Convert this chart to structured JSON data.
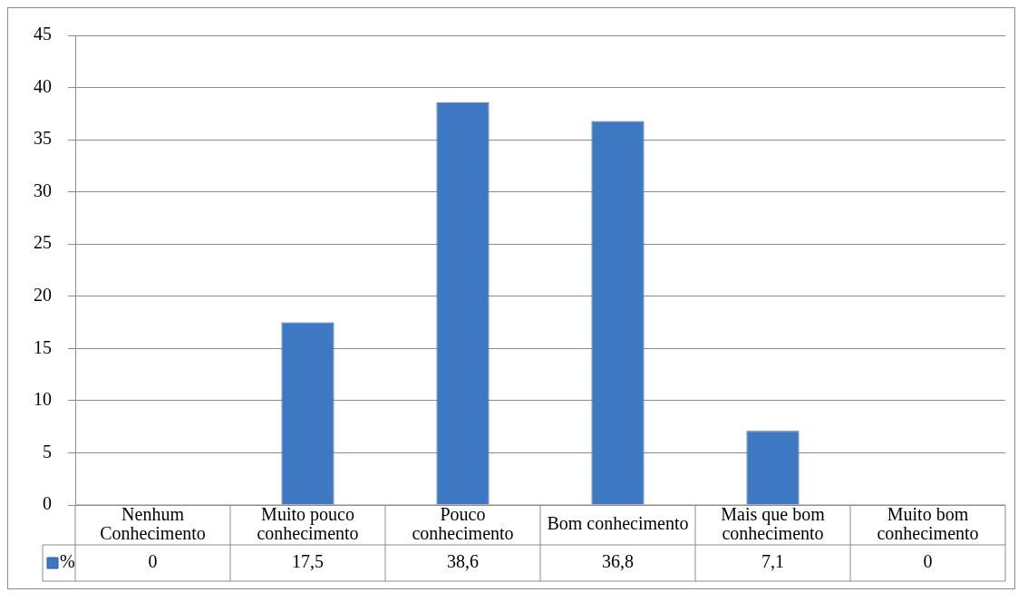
{
  "chart_data": {
    "type": "bar",
    "categories": [
      "Nenhum Conhecimento",
      "Muito pouco conhecimento",
      "Pouco conhecimento",
      "Bom conhecimento",
      "Mais que bom conhecimento",
      "Muito bom conhecimento"
    ],
    "series": [
      {
        "name": "%",
        "color": "#3f78c2",
        "values": [
          0,
          17.5,
          38.6,
          36.8,
          7.1,
          0
        ],
        "value_labels": [
          "0",
          "17,5",
          "38,6",
          "36,8",
          "7,1",
          "0"
        ]
      }
    ],
    "ylim": [
      0,
      45
    ],
    "yticks": [
      0,
      5,
      10,
      15,
      20,
      25,
      30,
      35,
      40,
      45
    ],
    "grid": "y",
    "legend": "bottom"
  }
}
